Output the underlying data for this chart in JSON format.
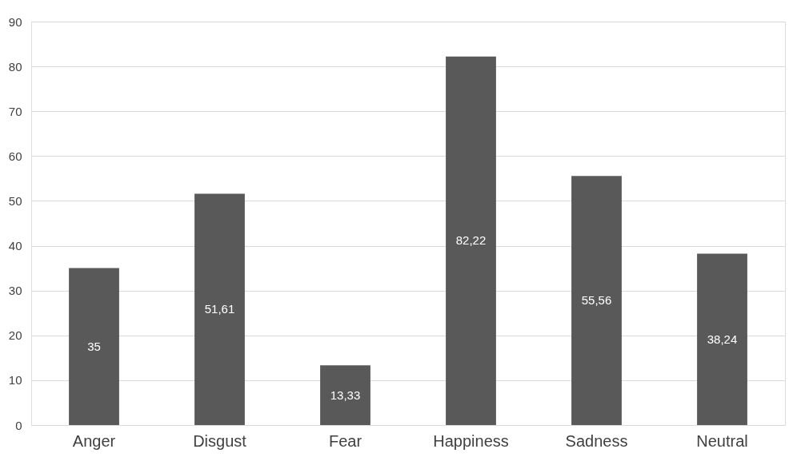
{
  "chart_data": {
    "type": "bar",
    "categories": [
      "Anger",
      "Disgust",
      "Fear",
      "Happiness",
      "Sadness",
      "Neutral"
    ],
    "values": [
      35,
      51.61,
      13.33,
      82.22,
      55.56,
      38.24
    ],
    "value_labels": [
      "35",
      "51,61",
      "13,33",
      "82,22",
      "55,56",
      "38,24"
    ],
    "color": "#595959",
    "ylim": [
      0,
      90
    ],
    "yticks": [
      0,
      10,
      20,
      30,
      40,
      50,
      60,
      70,
      80,
      90
    ],
    "grid": "y"
  }
}
